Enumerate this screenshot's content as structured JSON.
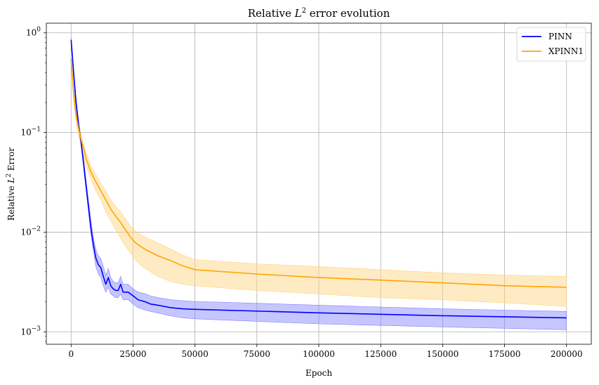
{
  "chart_data": {
    "type": "line",
    "title_prefix": "Relative ",
    "title_var": "L",
    "title_sup": "2",
    "title_suffix": " error evolution",
    "xlabel": "Epoch",
    "ylabel_prefix": "Relative ",
    "ylabel_var": "L",
    "ylabel_sup": "2",
    "ylabel_suffix": " Error",
    "xlim": [
      -10000,
      210000
    ],
    "ylim": [
      0.00075,
      1.25
    ],
    "yscale": "log",
    "grid": true,
    "legend_position": "top-right",
    "x_ticks": [
      0,
      25000,
      50000,
      75000,
      100000,
      125000,
      150000,
      175000,
      200000
    ],
    "x_tick_labels": [
      "0",
      "25000",
      "50000",
      "75000",
      "100000",
      "125000",
      "150000",
      "175000",
      "200000"
    ],
    "y_ticks": [
      0.001,
      0.01,
      0.1,
      1
    ],
    "y_tick_labels": [
      {
        "base": "10",
        "exp": "−3"
      },
      {
        "base": "10",
        "exp": "−2"
      },
      {
        "base": "10",
        "exp": "−1"
      },
      {
        "base": "10",
        "exp": "0"
      }
    ],
    "series": [
      {
        "name": "PINN",
        "color": "#0000ff",
        "band_color": "#8080ff",
        "x": [
          0,
          1000,
          2000,
          3000,
          4000,
          5000,
          6000,
          7000,
          8000,
          9000,
          10000,
          11000,
          12000,
          13000,
          14000,
          15000,
          16000,
          17000,
          18000,
          19000,
          20000,
          21000,
          22000,
          23000,
          25000,
          27000,
          30000,
          32000,
          35000,
          40000,
          45000,
          50000,
          100000,
          150000,
          200000
        ],
        "y": [
          0.85,
          0.4,
          0.2,
          0.12,
          0.08,
          0.05,
          0.03,
          0.018,
          0.011,
          0.0075,
          0.0055,
          0.0047,
          0.0044,
          0.0036,
          0.003,
          0.0035,
          0.0029,
          0.0027,
          0.0026,
          0.0026,
          0.003,
          0.0025,
          0.0025,
          0.0025,
          0.0023,
          0.0021,
          0.002,
          0.0019,
          0.00185,
          0.00175,
          0.0017,
          0.00168,
          0.00155,
          0.00145,
          0.00138
        ],
        "y_lower": [
          0.8,
          0.36,
          0.18,
          0.11,
          0.075,
          0.045,
          0.027,
          0.016,
          0.0095,
          0.0065,
          0.0045,
          0.0038,
          0.0035,
          0.0029,
          0.0025,
          0.0028,
          0.0024,
          0.0023,
          0.0022,
          0.0022,
          0.0024,
          0.0021,
          0.0021,
          0.0021,
          0.0019,
          0.00175,
          0.00165,
          0.0016,
          0.00155,
          0.00145,
          0.00138,
          0.00135,
          0.0012,
          0.00112,
          0.00105
        ],
        "y_upper": [
          0.9,
          0.44,
          0.22,
          0.13,
          0.088,
          0.056,
          0.034,
          0.021,
          0.013,
          0.0088,
          0.0067,
          0.0058,
          0.0054,
          0.0045,
          0.0037,
          0.0043,
          0.0035,
          0.0032,
          0.0031,
          0.0031,
          0.0036,
          0.003,
          0.003,
          0.003,
          0.0027,
          0.0025,
          0.0024,
          0.0023,
          0.0022,
          0.0021,
          0.00205,
          0.00202,
          0.00185,
          0.0017,
          0.0016
        ]
      },
      {
        "name": "XPINN1",
        "color": "#ffa500",
        "band_color": "#ffd27a",
        "x": [
          0,
          1000,
          2000,
          3000,
          4000,
          5000,
          6000,
          7000,
          8000,
          10000,
          12000,
          14000,
          16000,
          18000,
          20000,
          22000,
          24000,
          26000,
          28000,
          30000,
          35000,
          40000,
          45000,
          50000,
          75000,
          100000,
          125000,
          150000,
          175000,
          200000
        ],
        "y": [
          0.55,
          0.25,
          0.15,
          0.11,
          0.085,
          0.07,
          0.055,
          0.047,
          0.04,
          0.032,
          0.026,
          0.021,
          0.017,
          0.0145,
          0.0125,
          0.0105,
          0.0089,
          0.0078,
          0.0072,
          0.0067,
          0.0058,
          0.0052,
          0.0046,
          0.0042,
          0.0038,
          0.0035,
          0.0033,
          0.0031,
          0.0029,
          0.0028
        ],
        "y_lower": [
          0.5,
          0.22,
          0.13,
          0.095,
          0.075,
          0.06,
          0.047,
          0.04,
          0.034,
          0.026,
          0.021,
          0.016,
          0.013,
          0.0105,
          0.0088,
          0.0072,
          0.0062,
          0.0053,
          0.0047,
          0.0043,
          0.0036,
          0.0032,
          0.003,
          0.0029,
          0.0026,
          0.0024,
          0.0022,
          0.0021,
          0.00195,
          0.0018
        ],
        "y_upper": [
          0.6,
          0.28,
          0.17,
          0.125,
          0.095,
          0.078,
          0.063,
          0.054,
          0.046,
          0.038,
          0.031,
          0.026,
          0.021,
          0.018,
          0.016,
          0.0135,
          0.0115,
          0.0102,
          0.0095,
          0.0089,
          0.0078,
          0.0068,
          0.0059,
          0.0053,
          0.0048,
          0.0045,
          0.0042,
          0.0039,
          0.0037,
          0.0036
        ]
      }
    ]
  }
}
